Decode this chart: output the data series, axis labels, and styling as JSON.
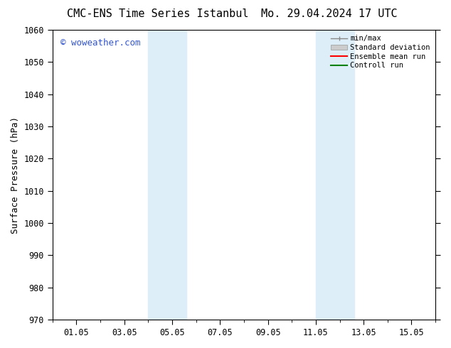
{
  "title_left": "CMC-ENS Time Series Istanbul",
  "title_right": "Mo. 29.04.2024 17 UTC",
  "ylabel": "Surface Pressure (hPa)",
  "ylim": [
    970,
    1060
  ],
  "yticks": [
    970,
    980,
    990,
    1000,
    1010,
    1020,
    1030,
    1040,
    1050,
    1060
  ],
  "xtick_labels": [
    "01.05",
    "03.05",
    "05.05",
    "07.05",
    "09.05",
    "11.05",
    "13.05",
    "15.05"
  ],
  "xtick_positions": [
    1,
    3,
    5,
    7,
    9,
    11,
    13,
    15
  ],
  "xlim": [
    0,
    16
  ],
  "shaded_bands": [
    {
      "x_start": 4.0,
      "x_end": 5.6
    },
    {
      "x_start": 11.0,
      "x_end": 12.6
    }
  ],
  "shade_color": "#ddeef8",
  "background_color": "#ffffff",
  "watermark_text": "© woweather.com",
  "watermark_color": "#3355cc",
  "legend_labels": [
    "min/max",
    "Standard deviation",
    "Ensemble mean run",
    "Controll run"
  ],
  "legend_colors": [
    "#aaaaaa",
    "#cccccc",
    "#ff0000",
    "#008000"
  ],
  "title_fontsize": 11,
  "axis_label_fontsize": 9,
  "tick_fontsize": 8.5,
  "legend_fontsize": 7.5,
  "font_family": "monospace"
}
